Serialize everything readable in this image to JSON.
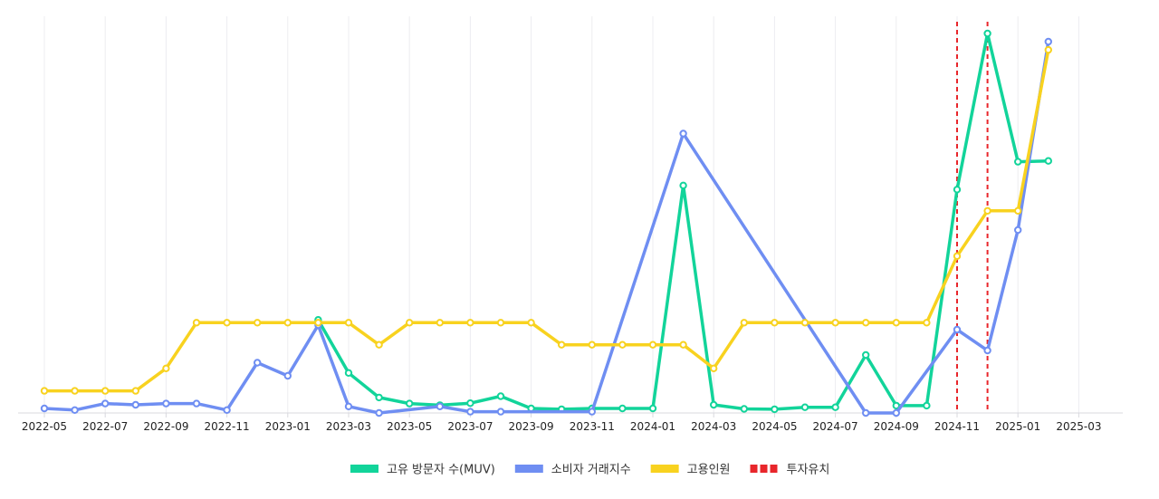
{
  "chart_data": {
    "type": "line",
    "x": [
      "2022-05",
      "2022-06",
      "2022-07",
      "2022-08",
      "2022-09",
      "2022-10",
      "2022-11",
      "2022-12",
      "2023-01",
      "2023-02",
      "2023-03",
      "2023-04",
      "2023-05",
      "2023-06",
      "2023-07",
      "2023-08",
      "2023-09",
      "2023-10",
      "2023-11",
      "2023-12",
      "2024-01",
      "2024-02",
      "2024-03",
      "2024-04",
      "2024-05",
      "2024-06",
      "2024-07",
      "2024-08",
      "2024-09",
      "2024-10",
      "2024-11",
      "2024-12",
      "2025-01",
      "2025-02"
    ],
    "x_ticks": [
      "2022-05",
      "2022-07",
      "2022-09",
      "2022-11",
      "2023-01",
      "2023-03",
      "2023-05",
      "2023-07",
      "2023-09",
      "2023-11",
      "2024-01",
      "2024-03",
      "2024-05",
      "2024-07",
      "2024-09",
      "2024-11",
      "2025-01",
      "2025-03"
    ],
    "ylim": [
      0,
      100
    ],
    "grid": "vertical",
    "legend_position": "bottom",
    "series": [
      {
        "name": "고유 방문자 수(MUV)",
        "color": "#12d49a",
        "x": [
          "2023-02",
          "2023-03",
          "2023-04",
          "2023-05",
          "2023-06",
          "2023-07",
          "2023-08",
          "2023-09",
          "2023-10",
          "2023-11",
          "2023-12",
          "2024-01",
          "2024-02",
          "2024-03",
          "2024-04",
          "2024-05",
          "2024-06",
          "2024-07",
          "2024-08",
          "2024-09",
          "2024-10",
          "2024-11",
          "2024-12",
          "2025-01",
          "2025-02"
        ],
        "values": [
          22.8,
          9.8,
          3.8,
          2.3,
          1.9,
          2.4,
          4.1,
          1.1,
          0.9,
          1.1,
          1.1,
          1.1,
          55.7,
          2.0,
          1.0,
          0.9,
          1.4,
          1.4,
          14.2,
          1.8,
          1.8,
          54.7,
          92.9,
          61.5,
          61.7
        ]
      },
      {
        "name": "소비자 거래지수",
        "color": "#6f8ef2",
        "x": [
          "2022-05",
          "2022-06",
          "2022-07",
          "2022-08",
          "2022-09",
          "2022-10",
          "2022-11",
          "2022-12",
          "2023-01",
          "2023-02",
          "2023-03",
          "2023-04",
          "2023-06",
          "2023-07",
          "2023-08",
          "2023-11",
          "2024-02",
          "2024-08",
          "2024-09",
          "2024-11",
          "2024-12",
          "2025-01",
          "2025-02"
        ],
        "values": [
          1.1,
          0.7,
          2.3,
          2.0,
          2.3,
          2.3,
          0.7,
          12.3,
          9.1,
          21.5,
          1.6,
          0.0,
          1.6,
          0.3,
          0.3,
          0.3,
          68.4,
          0.0,
          0.0,
          20.4,
          15.3,
          44.8,
          90.9
        ]
      },
      {
        "name": "고용인원",
        "color": "#f8d21f",
        "x": [
          "2022-05",
          "2022-06",
          "2022-07",
          "2022-08",
          "2022-09",
          "2022-10",
          "2022-11",
          "2022-12",
          "2023-01",
          "2023-02",
          "2023-03",
          "2023-04",
          "2023-05",
          "2023-06",
          "2023-07",
          "2023-08",
          "2023-09",
          "2023-10",
          "2023-11",
          "2023-12",
          "2024-01",
          "2024-02",
          "2024-03",
          "2024-04",
          "2024-05",
          "2024-06",
          "2024-07",
          "2024-08",
          "2024-09",
          "2024-10",
          "2024-11",
          "2024-12",
          "2025-01",
          "2025-02"
        ],
        "values": [
          5.4,
          5.4,
          5.4,
          5.4,
          10.9,
          22.1,
          22.1,
          22.1,
          22.1,
          22.1,
          22.1,
          16.7,
          22.1,
          22.1,
          22.1,
          22.1,
          22.1,
          16.7,
          16.7,
          16.7,
          16.7,
          16.7,
          10.9,
          22.1,
          22.1,
          22.1,
          22.1,
          22.1,
          22.1,
          22.1,
          38.4,
          49.5,
          49.5,
          88.9
        ]
      }
    ],
    "investment": {
      "name": "투자유치",
      "color": "#e8262b",
      "dates": [
        "2024-11",
        "2024-12"
      ]
    }
  }
}
